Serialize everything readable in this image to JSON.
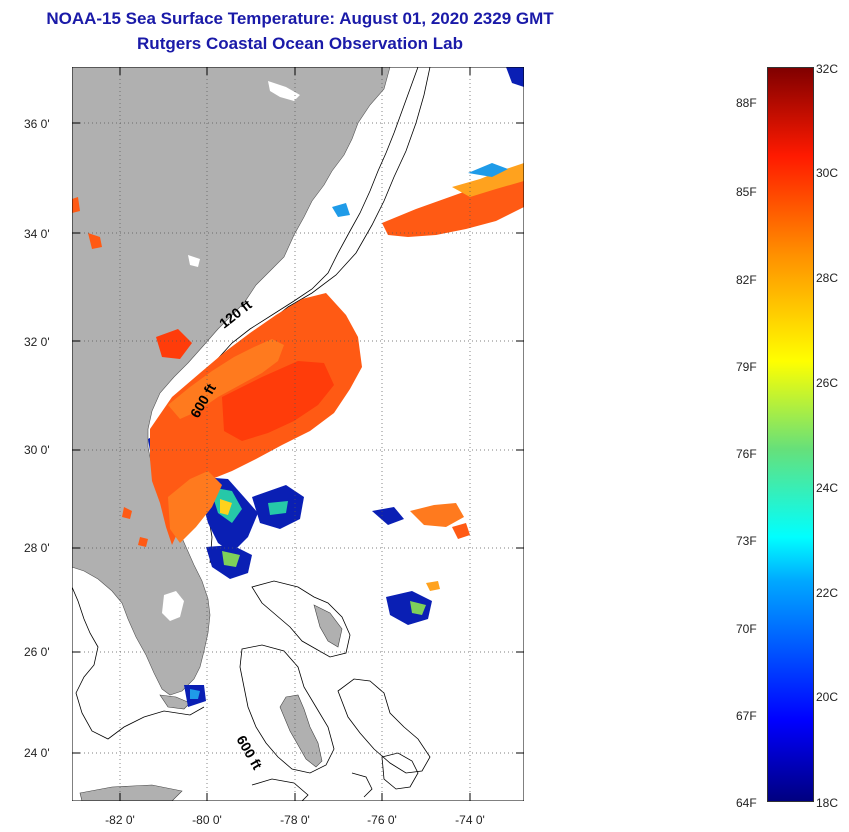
{
  "header": {
    "title": "NOAA-15 Sea Surface Temperature:  August 01, 2020 2329 GMT",
    "subtitle": "Rutgers Coastal Ocean Observation Lab"
  },
  "map": {
    "latitude_labels": [
      "36 0'",
      "34 0'",
      "32 0'",
      "30 0'",
      "28 0'",
      "26 0'",
      "24 0'"
    ],
    "longitude_labels": [
      "-82 0'",
      "-80 0'",
      "-78 0'",
      "-76 0'",
      "-74 0'"
    ],
    "contour_labels": [
      "120 ft",
      "600 ft",
      "600 ft"
    ],
    "land_color": "#b0b0b0",
    "ocean_color": "#ffffff"
  },
  "colorbar": {
    "fahrenheit_labels": [
      "88F",
      "85F",
      "82F",
      "79F",
      "76F",
      "73F",
      "70F",
      "67F",
      "64F"
    ],
    "celsius_labels": [
      "32C",
      "30C",
      "28C",
      "26C",
      "24C",
      "22C",
      "20C",
      "18C"
    ],
    "range_c": [
      18,
      32
    ],
    "colormap": "jet"
  }
}
